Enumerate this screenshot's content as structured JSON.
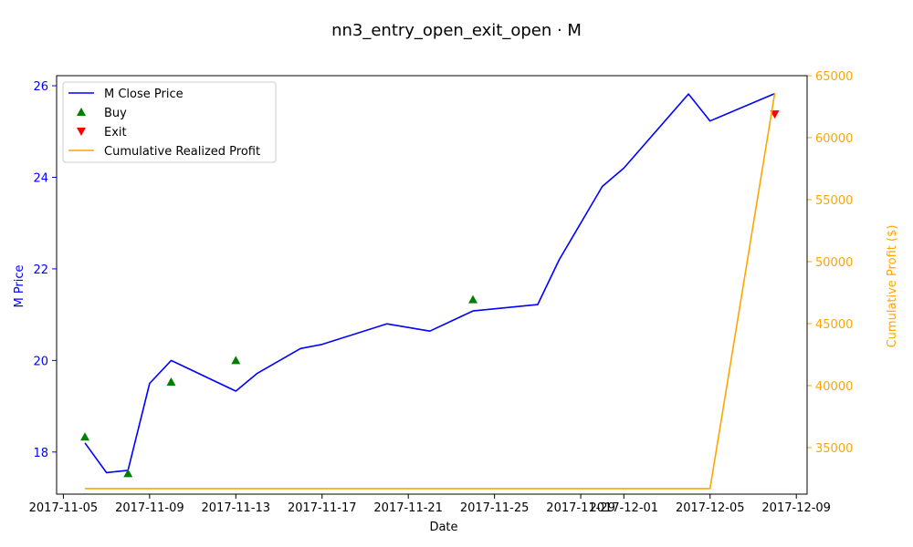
{
  "chart_data": {
    "type": "line",
    "title": "nn3_entry_open_exit_open · M",
    "xlabel": "Date",
    "ylabel_left": "M Price",
    "ylabel_right": "Cumulative Profit ($)",
    "x_ticks": [
      "2017-11-05",
      "2017-11-09",
      "2017-11-13",
      "2017-11-17",
      "2017-11-21",
      "2017-11-25",
      "2017-11-29",
      "2017-12-01",
      "2017-12-05",
      "2017-12-09"
    ],
    "y_left_ticks": [
      18,
      20,
      22,
      24,
      26
    ],
    "y_right_ticks": [
      35000,
      40000,
      45000,
      50000,
      55000,
      60000,
      65000
    ],
    "xlim": [
      "2017-11-04 16:28",
      "2017-12-09 12:00"
    ],
    "ylim_left": [
      17.08,
      26.22
    ],
    "ylim_right": [
      31250,
      65000
    ],
    "grid": false,
    "legend_position": "upper-left",
    "legend": [
      {
        "label": "M Close Price",
        "kind": "line",
        "color": "#0000ff"
      },
      {
        "label": "Buy",
        "kind": "marker-up",
        "color": "#008000"
      },
      {
        "label": "Exit",
        "kind": "marker-down",
        "color": "#ff0000"
      },
      {
        "label": "Cumulative Realized Profit",
        "kind": "line",
        "color": "#ffa500"
      }
    ],
    "series": [
      {
        "name": "M Close Price",
        "axis": "left",
        "color": "#0000ff",
        "x": [
          "2017-11-06",
          "2017-11-07",
          "2017-11-08",
          "2017-11-09",
          "2017-11-10",
          "2017-11-13",
          "2017-11-14",
          "2017-11-16",
          "2017-11-17",
          "2017-11-20",
          "2017-11-22",
          "2017-11-24",
          "2017-11-27",
          "2017-11-28",
          "2017-11-30",
          "2017-12-01",
          "2017-12-04",
          "2017-12-05",
          "2017-12-08"
        ],
        "y": [
          18.2,
          17.55,
          17.6,
          19.5,
          20.0,
          19.33,
          19.72,
          20.26,
          20.35,
          20.8,
          20.64,
          21.08,
          21.22,
          22.2,
          23.8,
          24.2,
          25.82,
          25.23,
          25.83
        ]
      },
      {
        "name": "Buy",
        "axis": "left",
        "color": "#008000",
        "marker": "triangle-up",
        "x": [
          "2017-11-06",
          "2017-11-08",
          "2017-11-10",
          "2017-11-13",
          "2017-11-24"
        ],
        "y": [
          18.33,
          17.53,
          19.53,
          20.0,
          21.33
        ]
      },
      {
        "name": "Exit",
        "axis": "left",
        "color": "#ff0000",
        "marker": "triangle-down",
        "x": [
          "2017-12-08"
        ],
        "y": [
          25.38
        ]
      },
      {
        "name": "Cumulative Realized Profit",
        "axis": "right",
        "color": "#ffa500",
        "x": [
          "2017-11-06",
          "2017-12-05",
          "2017-12-08"
        ],
        "y": [
          31700,
          31700,
          63600
        ]
      }
    ]
  }
}
